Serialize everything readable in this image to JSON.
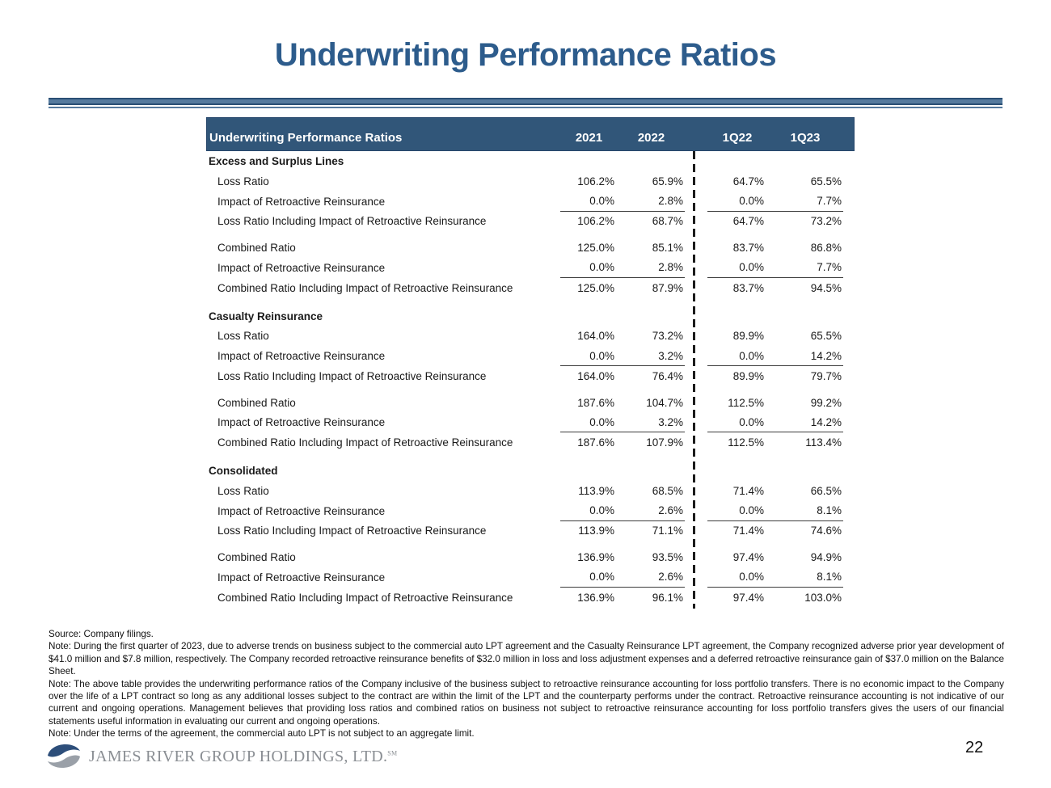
{
  "slide": {
    "title": "Underwriting Performance Ratios",
    "page_number": "22",
    "logo_text": "JAMES RIVER GROUP HOLDINGS, LTD.",
    "logo_mark": "SM"
  },
  "colors": {
    "title_blue": "#2d5c8c",
    "header_band_blue": "#315679",
    "divider_blue_dark": "#2a4f74",
    "divider_blue_light": "#557a9e",
    "logo_gray": "#8a8e93",
    "logo_blue": "#2d4e7a",
    "logo_silver": "#9aa0a8"
  },
  "table": {
    "header": {
      "label": "Underwriting Performance Ratios",
      "columns": [
        "2021",
        "2022",
        "1Q22",
        "1Q23"
      ]
    },
    "sections": [
      {
        "name": "Excess and Surplus Lines",
        "rows": [
          {
            "label": "Loss Ratio",
            "values": [
              "106.2%",
              "65.9%",
              "64.7%",
              "65.5%"
            ],
            "underline": false,
            "spacer_before": false
          },
          {
            "label": "Impact of Retroactive Reinsurance",
            "values": [
              "0.0%",
              "2.8%",
              "0.0%",
              "7.7%"
            ],
            "underline": true,
            "spacer_before": false
          },
          {
            "label": "Loss Ratio Including Impact of Retroactive Reinsurance",
            "values": [
              "106.2%",
              "68.7%",
              "64.7%",
              "73.2%"
            ],
            "underline": false,
            "spacer_before": false
          },
          {
            "label": "Combined Ratio",
            "values": [
              "125.0%",
              "85.1%",
              "83.7%",
              "86.8%"
            ],
            "underline": false,
            "spacer_before": true
          },
          {
            "label": "Impact of Retroactive Reinsurance",
            "values": [
              "0.0%",
              "2.8%",
              "0.0%",
              "7.7%"
            ],
            "underline": true,
            "spacer_before": false
          },
          {
            "label": "Combined Ratio Including Impact of Retroactive Reinsurance",
            "values": [
              "125.0%",
              "87.9%",
              "83.7%",
              "94.5%"
            ],
            "underline": false,
            "spacer_before": false
          }
        ]
      },
      {
        "name": "Casualty Reinsurance",
        "rows": [
          {
            "label": "Loss Ratio",
            "values": [
              "164.0%",
              "73.2%",
              "89.9%",
              "65.5%"
            ],
            "underline": false,
            "spacer_before": false
          },
          {
            "label": "Impact of Retroactive Reinsurance",
            "values": [
              "0.0%",
              "3.2%",
              "0.0%",
              "14.2%"
            ],
            "underline": true,
            "spacer_before": false
          },
          {
            "label": "Loss Ratio Including Impact of Retroactive Reinsurance",
            "values": [
              "164.0%",
              "76.4%",
              "89.9%",
              "79.7%"
            ],
            "underline": false,
            "spacer_before": false
          },
          {
            "label": "Combined Ratio",
            "values": [
              "187.6%",
              "104.7%",
              "112.5%",
              "99.2%"
            ],
            "underline": false,
            "spacer_before": true
          },
          {
            "label": "Impact of Retroactive Reinsurance",
            "values": [
              "0.0%",
              "3.2%",
              "0.0%",
              "14.2%"
            ],
            "underline": true,
            "spacer_before": false
          },
          {
            "label": "Combined Ratio Including Impact of Retroactive Reinsurance",
            "values": [
              "187.6%",
              "107.9%",
              "112.5%",
              "113.4%"
            ],
            "underline": false,
            "spacer_before": false
          }
        ]
      },
      {
        "name": "Consolidated",
        "rows": [
          {
            "label": "Loss Ratio",
            "values": [
              "113.9%",
              "68.5%",
              "71.4%",
              "66.5%"
            ],
            "underline": false,
            "spacer_before": false
          },
          {
            "label": "Impact of Retroactive Reinsurance",
            "values": [
              "0.0%",
              "2.6%",
              "0.0%",
              "8.1%"
            ],
            "underline": true,
            "spacer_before": false
          },
          {
            "label": "Loss Ratio Including Impact of Retroactive Reinsurance",
            "values": [
              "113.9%",
              "71.1%",
              "71.4%",
              "74.6%"
            ],
            "underline": false,
            "spacer_before": false
          },
          {
            "label": "Combined Ratio",
            "values": [
              "136.9%",
              "93.5%",
              "97.4%",
              "94.9%"
            ],
            "underline": false,
            "spacer_before": true
          },
          {
            "label": "Impact of Retroactive Reinsurance",
            "values": [
              "0.0%",
              "2.6%",
              "0.0%",
              "8.1%"
            ],
            "underline": true,
            "spacer_before": false
          },
          {
            "label": "Combined Ratio Including Impact of Retroactive Reinsurance",
            "values": [
              "136.9%",
              "96.1%",
              "97.4%",
              "103.0%"
            ],
            "underline": false,
            "spacer_before": false
          }
        ]
      }
    ]
  },
  "footnotes": [
    "Source: Company filings.",
    "Note: During the first quarter of 2023, due to adverse trends on business subject to the commercial auto LPT agreement and the Casualty Reinsurance LPT agreement, the Company recognized adverse prior year development of $41.0 million and $7.8 million, respectively. The Company recorded retroactive reinsurance benefits of $32.0 million in loss and loss adjustment expenses and a deferred retroactive reinsurance gain of $37.0 million on the Balance Sheet.",
    "Note: The above table provides the underwriting performance ratios of the Company inclusive of the business subject to retroactive reinsurance accounting for loss portfolio transfers. There is no economic impact to the Company over the life of a LPT contract so long as any additional losses subject to the contract are within the limit of the LPT and the counterparty performs under the contract. Retroactive reinsurance accounting is not indicative of our current and ongoing operations. Management believes that providing loss ratios and combined ratios on business not subject to retroactive reinsurance accounting for loss portfolio transfers gives the users of our financial statements useful information in evaluating our current and ongoing operations.",
    "Note: Under the terms of the agreement, the commercial auto LPT is not subject to an aggregate limit."
  ]
}
